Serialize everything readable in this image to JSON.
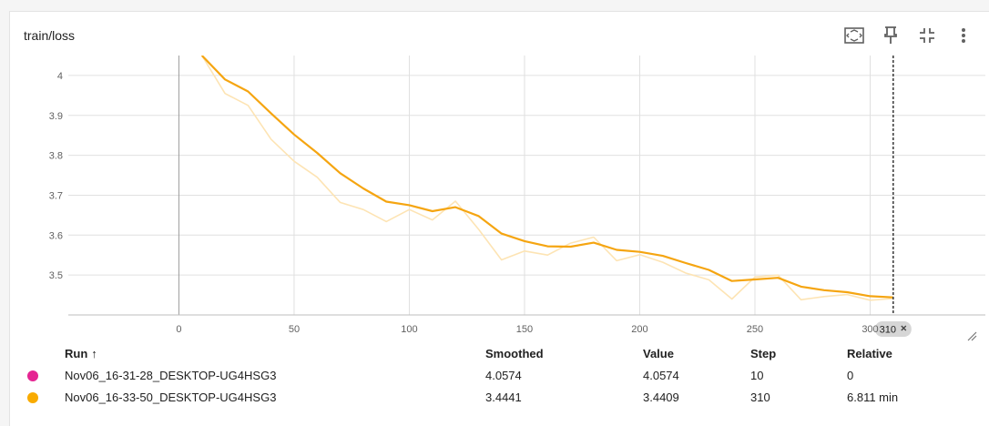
{
  "card": {
    "title": "train/loss",
    "toolbar": [
      {
        "icon": "fit-domain-icon"
      },
      {
        "icon": "pin-icon"
      },
      {
        "icon": "collapse-icon"
      },
      {
        "icon": "more-vert-icon"
      }
    ]
  },
  "chart_data": {
    "type": "line",
    "x_ticks": [
      0,
      50,
      100,
      150,
      200,
      250,
      300
    ],
    "y_ticks": [
      3.5,
      3.6,
      3.7,
      3.8,
      3.9,
      4
    ],
    "y_tick_labels": [
      "3.5",
      "3.6",
      "3.7",
      "3.8",
      "3.9",
      "4"
    ],
    "xlim": [
      -48,
      350
    ],
    "ylim": [
      3.4,
      4.05
    ],
    "grid": true,
    "cursor_step": 310,
    "cursor_label": "310",
    "series": [
      {
        "x": [
          10,
          20,
          30,
          40,
          50,
          60,
          70,
          80,
          90,
          100,
          110,
          120,
          130,
          140,
          150,
          160,
          170,
          180,
          190,
          200,
          210,
          220,
          230,
          240,
          250,
          260,
          270,
          280,
          290,
          300,
          310
        ],
        "smoothed": [
          4.05,
          3.99,
          3.96,
          3.905,
          3.852,
          3.806,
          3.755,
          3.717,
          3.684,
          3.675,
          3.66,
          3.67,
          3.648,
          3.604,
          3.585,
          3.572,
          3.571,
          3.581,
          3.563,
          3.558,
          3.548,
          3.53,
          3.513,
          3.485,
          3.489,
          3.493,
          3.471,
          3.462,
          3.457,
          3.447,
          3.444
        ],
        "raw": [
          4.05,
          3.955,
          3.925,
          3.84,
          3.785,
          3.745,
          3.682,
          3.664,
          3.634,
          3.664,
          3.638,
          3.685,
          3.615,
          3.538,
          3.56,
          3.55,
          3.58,
          3.595,
          3.536,
          3.551,
          3.532,
          3.505,
          3.488,
          3.44,
          3.495,
          3.5,
          3.438,
          3.446,
          3.451,
          3.437,
          3.441
        ],
        "color": "#f5a511",
        "raw_color": "#fde4b4"
      }
    ]
  },
  "table": {
    "headers": {
      "run": "Run",
      "sort_arrow": "↑",
      "smoothed": "Smoothed",
      "value": "Value",
      "step": "Step",
      "relative": "Relative"
    },
    "rows": [
      {
        "color": "#e52592",
        "run": "Nov06_16-31-28_DESKTOP-UG4HSG3",
        "smoothed": "4.0574",
        "value": "4.0574",
        "step": "10",
        "relative": "0"
      },
      {
        "color": "#f9ab00",
        "run": "Nov06_16-33-50_DESKTOP-UG4HSG3",
        "smoothed": "3.4441",
        "value": "3.4409",
        "step": "310",
        "relative": "6.811 min"
      }
    ]
  }
}
